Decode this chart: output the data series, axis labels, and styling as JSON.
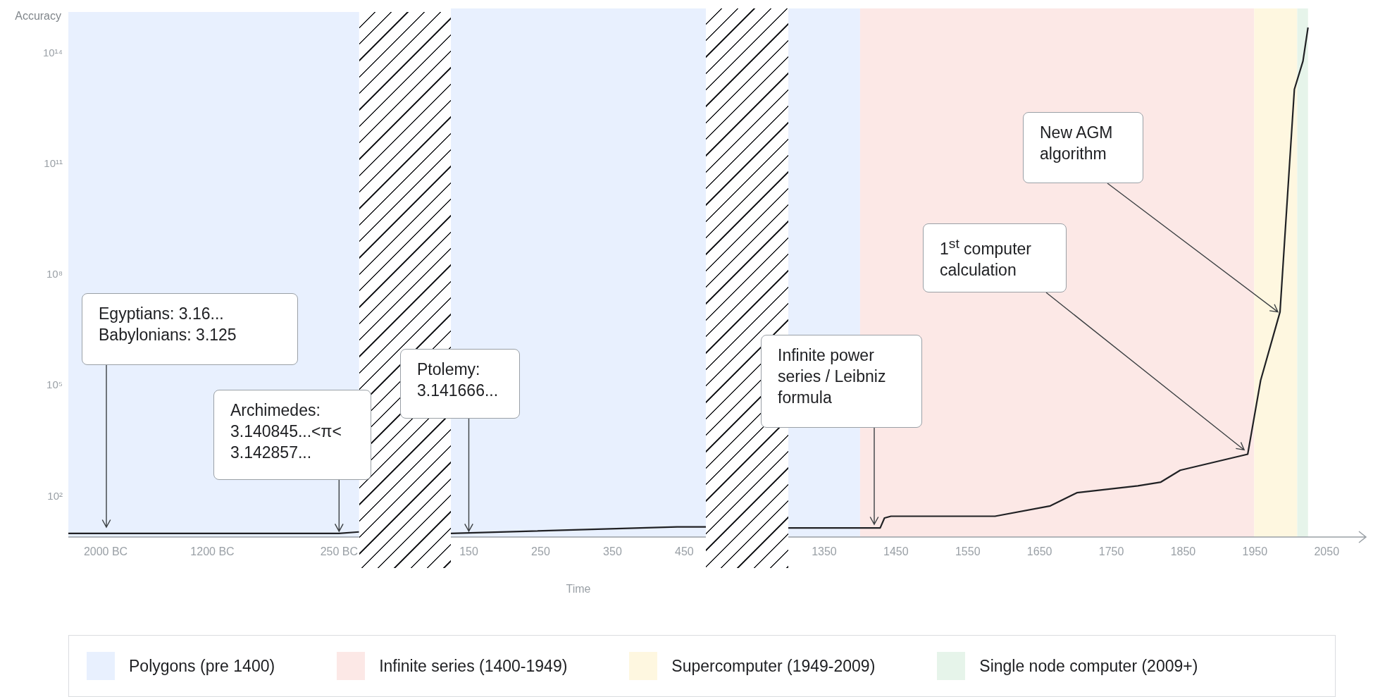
{
  "chart_data": [
    {
      "type": "line",
      "ylabel": "Accuracy",
      "log": "y",
      "marker": "none",
      "line_style": "solid",
      "xlim": [
        -2280,
        -100
      ],
      "xticks": [
        {
          "value": -2000,
          "label": "2000 BC"
        },
        {
          "value": -1200,
          "label": "1200 BC"
        },
        {
          "value": -250,
          "label": "250 BC"
        }
      ],
      "ylim": [
        8,
        1300000000000000.0
      ],
      "yticks": [
        {
          "value": 100,
          "label": "10²"
        },
        {
          "value": 100000,
          "label": "10⁵"
        },
        {
          "value": 100000000,
          "label": "10⁸"
        },
        {
          "value": 100000000000,
          "label": "10¹¹"
        },
        {
          "value": 100000000000000,
          "label": "10¹⁴"
        }
      ],
      "series": [
        {
          "color": "#202124",
          "x": [
            -2280,
            -250,
            -100
          ],
          "values": [
            10,
            10,
            11
          ]
        }
      ],
      "bands": [
        {
          "axis": "x",
          "from": -2280,
          "to": -100,
          "label": null,
          "color": "#e8f0fe"
        }
      ],
      "annotations": [
        "Egyptians: 3.16...\nBabylonians: 3.125",
        {
          "text": "Archimedes:\n3.140845...<π<\n3.142857...",
          "x": -250,
          "y": 10
        }
      ]
    },
    {
      "type": "line",
      "xlabel": "Time",
      "log": "y",
      "marker": "none",
      "line_style": "solid",
      "tick_labels": "x",
      "xlim": [
        125,
        480
      ],
      "xticks": [
        150,
        250,
        350,
        450
      ],
      "ylim": [
        8,
        1300000000000000.0
      ],
      "series": [
        {
          "color": "#202124",
          "x": [
            125,
            440,
            480
          ],
          "values": [
            10,
            15,
            15
          ]
        }
      ],
      "bands": [
        {
          "axis": "x",
          "from": 125,
          "to": 480,
          "label": null,
          "color": "#e8f0fe"
        }
      ],
      "annotations": [
        {
          "text": "Ptolemy:\n3.141666...",
          "x": 150,
          "y": 10
        }
      ]
    },
    {
      "type": "line",
      "log": "y",
      "marker": "none",
      "line_style": "solid",
      "tick_labels": "x",
      "legend": "bottom",
      "xlim": [
        1300,
        2090
      ],
      "xticks": [
        1350,
        1450,
        1550,
        1650,
        1750,
        1850,
        1950,
        2050
      ],
      "ylim": [
        8,
        1300000000000000.0
      ],
      "series": [
        {
          "color": "#202124",
          "x": [
            1300,
            1428,
            1434,
            1443,
            1588,
            1665,
            1702,
            1787,
            1819,
            1846,
            1940,
            1958,
            1985,
            2005,
            2017,
            2024
          ],
          "values": [
            14,
            14,
            26,
            29,
            29,
            55,
            124,
            190,
            240,
            500,
            1350,
            130000,
            9000000,
            8700000000000.0,
            50000000000000.0,
            400000000000000.0
          ]
        }
      ],
      "bands": [
        {
          "axis": "x",
          "from": 1300,
          "to": 1400,
          "label": "Polygons (pre 1400)",
          "color": "#e8f0fe"
        },
        {
          "axis": "x",
          "from": 1400,
          "to": 1949,
          "label": "Infinite series (1400-1949)",
          "color": "#fce8e6"
        },
        {
          "axis": "x",
          "from": 1949,
          "to": 2009,
          "label": "Supercomputer (1949-2009)",
          "color": "#fef7e0"
        },
        {
          "axis": "x",
          "from": 2009,
          "to": 2024,
          "label": "Single node computer (2009+)",
          "color": "#e6f4ea"
        }
      ],
      "annotations": [
        "Infinite power\nseries / Leibniz\nformula",
        {
          "text": "1$^{st}$ computer\ncalculation",
          "x": 1940,
          "y": 1350
        },
        {
          "text": "New AGM\nalgorithm",
          "x": 1985,
          "y": 9000000
        }
      ]
    }
  ]
}
